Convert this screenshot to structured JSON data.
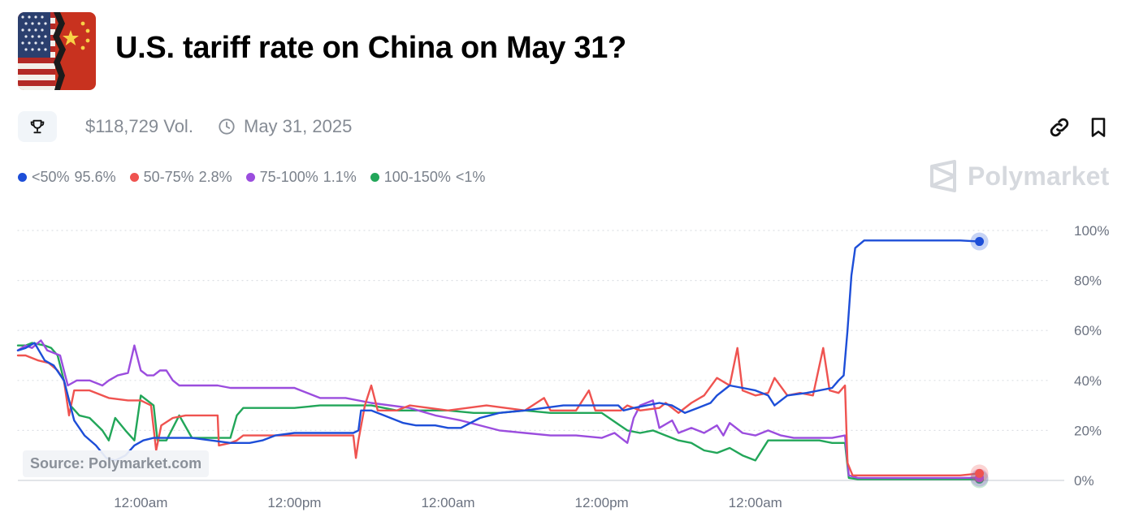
{
  "header": {
    "title": "U.S. tariff rate on China on May 31?",
    "icon": "us-china-flags-icon"
  },
  "meta": {
    "volume": "$118,729 Vol.",
    "end_date": "May 31, 2025",
    "icons": [
      "trophy-icon",
      "clock-icon",
      "link-icon",
      "bookmark-icon"
    ]
  },
  "brand": {
    "name": "Polymarket",
    "color": "#d6d9de"
  },
  "source": "Source: Polymarket.com",
  "chart_data": {
    "type": "line",
    "x_tick_labels": [
      "12:00am",
      "12:00pm",
      "12:00am",
      "12:00pm",
      "12:00am"
    ],
    "x_range": [
      -3.6,
      78
    ],
    "x_ticks": [
      6,
      18,
      30,
      42,
      54
    ],
    "ylim": [
      0,
      100
    ],
    "y_ticks": [
      0,
      20,
      40,
      60,
      80,
      100
    ],
    "y_tick_labels": [
      "0%",
      "20%",
      "40%",
      "60%",
      "80%",
      "100%"
    ],
    "grid": true,
    "legend_position": "top-left",
    "series": [
      {
        "name": "<50%",
        "label": "95.6%",
        "color": "#1d4ed8",
        "points": [
          [
            -3.6,
            52
          ],
          [
            -3,
            53
          ],
          [
            -2.3,
            55
          ],
          [
            -1.5,
            48
          ],
          [
            -0.8,
            46
          ],
          [
            0,
            40
          ],
          [
            0.8,
            24
          ],
          [
            1.6,
            18
          ],
          [
            2.5,
            14
          ],
          [
            3.3,
            9
          ],
          [
            4,
            8
          ],
          [
            4.8,
            10
          ],
          [
            5.5,
            14
          ],
          [
            6.2,
            16
          ],
          [
            7,
            17
          ],
          [
            8.5,
            17
          ],
          [
            10,
            17
          ],
          [
            11.5,
            16
          ],
          [
            13,
            15
          ],
          [
            14.5,
            15
          ],
          [
            15.5,
            16
          ],
          [
            16.5,
            18
          ],
          [
            18,
            19
          ],
          [
            20,
            19
          ],
          [
            22.6,
            19
          ],
          [
            23,
            20
          ],
          [
            23.2,
            28
          ],
          [
            24,
            28
          ],
          [
            25,
            26
          ],
          [
            26.5,
            23
          ],
          [
            27.5,
            22
          ],
          [
            29,
            22
          ],
          [
            30,
            21
          ],
          [
            31,
            21
          ],
          [
            32.5,
            25
          ],
          [
            34,
            27
          ],
          [
            36,
            28
          ],
          [
            37.5,
            29
          ],
          [
            39,
            30
          ],
          [
            41,
            30
          ],
          [
            43.3,
            30
          ],
          [
            43.7,
            28
          ],
          [
            44.5,
            29
          ],
          [
            45.5,
            30
          ],
          [
            46.5,
            31
          ],
          [
            47.5,
            30
          ],
          [
            48.5,
            27
          ],
          [
            49.5,
            29
          ],
          [
            50.5,
            31
          ],
          [
            51,
            34
          ],
          [
            52,
            38
          ],
          [
            53,
            37
          ],
          [
            54,
            36
          ],
          [
            55,
            34
          ],
          [
            55.5,
            30
          ],
          [
            56.5,
            34
          ],
          [
            58,
            35
          ],
          [
            60,
            37
          ],
          [
            60.5,
            40
          ],
          [
            60.9,
            42
          ],
          [
            61.2,
            60
          ],
          [
            61.5,
            82
          ],
          [
            61.8,
            93
          ],
          [
            62.5,
            96
          ],
          [
            64,
            96
          ],
          [
            66,
            96
          ],
          [
            68,
            96
          ],
          [
            70,
            96
          ],
          [
            71.5,
            95.6
          ]
        ]
      },
      {
        "name": "50-75%",
        "label": "2.8%",
        "color": "#ef5350",
        "points": [
          [
            -3.6,
            50
          ],
          [
            -3,
            50
          ],
          [
            -2,
            48
          ],
          [
            -1.2,
            47
          ],
          [
            -0.5,
            44
          ],
          [
            0,
            40
          ],
          [
            0.4,
            26
          ],
          [
            0.8,
            36
          ],
          [
            2,
            36
          ],
          [
            3.5,
            33
          ],
          [
            5,
            32
          ],
          [
            6,
            32
          ],
          [
            6.8,
            30
          ],
          [
            7.2,
            12
          ],
          [
            7.6,
            22
          ],
          [
            8.5,
            25
          ],
          [
            9.5,
            26
          ],
          [
            11,
            26
          ],
          [
            12,
            26
          ],
          [
            12.1,
            14
          ],
          [
            13,
            15
          ],
          [
            13.5,
            16
          ],
          [
            14,
            18
          ],
          [
            16,
            18
          ],
          [
            20,
            18
          ],
          [
            22.6,
            18
          ],
          [
            22.8,
            9
          ],
          [
            23,
            16
          ],
          [
            23.5,
            30
          ],
          [
            24,
            38
          ],
          [
            24.5,
            28
          ],
          [
            26,
            28
          ],
          [
            27,
            30
          ],
          [
            28.5,
            29
          ],
          [
            30,
            28
          ],
          [
            31.5,
            29
          ],
          [
            33,
            30
          ],
          [
            34.5,
            29
          ],
          [
            36,
            28
          ],
          [
            37.5,
            33
          ],
          [
            38,
            28
          ],
          [
            40,
            28
          ],
          [
            41,
            36
          ],
          [
            41.5,
            28
          ],
          [
            43.5,
            28
          ],
          [
            44,
            30
          ],
          [
            45,
            28
          ],
          [
            46.5,
            29
          ],
          [
            47,
            31
          ],
          [
            48,
            27
          ],
          [
            49,
            31
          ],
          [
            50,
            34
          ],
          [
            51,
            41
          ],
          [
            52,
            38
          ],
          [
            52.6,
            53
          ],
          [
            53,
            36
          ],
          [
            54,
            34
          ],
          [
            55,
            35
          ],
          [
            55.5,
            41
          ],
          [
            56.5,
            34
          ],
          [
            57.5,
            35
          ],
          [
            58.5,
            34
          ],
          [
            59.3,
            53
          ],
          [
            59.8,
            36
          ],
          [
            60.5,
            35
          ],
          [
            61,
            38
          ],
          [
            61.2,
            7
          ],
          [
            61.6,
            2
          ],
          [
            62,
            2
          ],
          [
            65,
            2
          ],
          [
            68,
            2
          ],
          [
            70,
            2
          ],
          [
            71.5,
            2.8
          ]
        ]
      },
      {
        "name": "75-100%",
        "label": "1.1%",
        "color": "#9b4dde",
        "points": [
          [
            -3.6,
            52
          ],
          [
            -3,
            54
          ],
          [
            -2.5,
            53
          ],
          [
            -1.8,
            56
          ],
          [
            -1.3,
            52
          ],
          [
            -0.8,
            51
          ],
          [
            -0.3,
            50
          ],
          [
            0,
            44
          ],
          [
            0.3,
            38
          ],
          [
            1,
            40
          ],
          [
            2,
            40
          ],
          [
            3,
            38
          ],
          [
            3.5,
            40
          ],
          [
            4.2,
            42
          ],
          [
            5,
            43
          ],
          [
            5.5,
            54
          ],
          [
            6,
            44
          ],
          [
            6.5,
            42
          ],
          [
            7,
            42
          ],
          [
            7.5,
            44
          ],
          [
            8,
            44
          ],
          [
            8.5,
            40
          ],
          [
            9,
            38
          ],
          [
            12,
            38
          ],
          [
            13,
            37
          ],
          [
            16,
            37
          ],
          [
            18,
            37
          ],
          [
            18.5,
            36
          ],
          [
            20,
            33
          ],
          [
            22,
            33
          ],
          [
            24,
            31
          ],
          [
            27,
            29
          ],
          [
            29,
            26
          ],
          [
            30,
            25
          ],
          [
            31,
            24
          ],
          [
            34,
            20
          ],
          [
            36,
            19
          ],
          [
            38,
            18
          ],
          [
            40,
            18
          ],
          [
            42,
            17
          ],
          [
            43,
            19
          ],
          [
            44,
            15
          ],
          [
            44.5,
            25
          ],
          [
            45,
            30
          ],
          [
            46,
            32
          ],
          [
            46.5,
            21
          ],
          [
            47.5,
            24
          ],
          [
            48,
            19
          ],
          [
            49,
            21
          ],
          [
            50,
            19
          ],
          [
            51,
            22
          ],
          [
            51.5,
            18
          ],
          [
            52,
            23
          ],
          [
            53,
            19
          ],
          [
            54,
            18
          ],
          [
            55,
            20
          ],
          [
            56,
            18
          ],
          [
            57,
            17
          ],
          [
            58,
            17
          ],
          [
            59,
            17
          ],
          [
            60,
            17
          ],
          [
            61,
            18
          ],
          [
            61.3,
            2
          ],
          [
            62,
            1
          ],
          [
            65,
            1
          ],
          [
            68,
            1
          ],
          [
            70,
            1
          ],
          [
            71.5,
            1.1
          ]
        ]
      },
      {
        "name": "100-150%",
        "label": "<1%",
        "color": "#22a659",
        "points": [
          [
            -3.6,
            54
          ],
          [
            -3,
            54
          ],
          [
            -2.5,
            55
          ],
          [
            -1.5,
            54
          ],
          [
            -1,
            53
          ],
          [
            -0.5,
            50
          ],
          [
            0,
            40
          ],
          [
            0.5,
            30
          ],
          [
            1.2,
            26
          ],
          [
            2,
            25
          ],
          [
            3,
            20
          ],
          [
            3.5,
            16
          ],
          [
            4,
            25
          ],
          [
            4.8,
            20
          ],
          [
            5.5,
            16
          ],
          [
            6,
            34
          ],
          [
            6.5,
            32
          ],
          [
            7,
            30
          ],
          [
            7.3,
            16
          ],
          [
            8,
            16
          ],
          [
            9,
            26
          ],
          [
            10,
            17
          ],
          [
            12,
            17
          ],
          [
            13,
            17
          ],
          [
            13.5,
            26
          ],
          [
            14,
            29
          ],
          [
            16,
            29
          ],
          [
            18,
            29
          ],
          [
            20,
            30
          ],
          [
            22,
            30
          ],
          [
            24,
            30
          ],
          [
            26,
            28
          ],
          [
            28,
            28
          ],
          [
            30,
            28
          ],
          [
            32,
            27
          ],
          [
            34,
            27
          ],
          [
            36,
            28
          ],
          [
            38,
            27
          ],
          [
            40,
            27
          ],
          [
            42,
            27
          ],
          [
            44,
            20
          ],
          [
            45,
            19
          ],
          [
            46,
            20
          ],
          [
            47,
            18
          ],
          [
            48,
            16
          ],
          [
            49,
            15
          ],
          [
            50,
            12
          ],
          [
            51,
            11
          ],
          [
            52,
            13
          ],
          [
            53,
            10
          ],
          [
            54,
            8
          ],
          [
            55,
            16
          ],
          [
            56,
            16
          ],
          [
            58,
            16
          ],
          [
            59,
            16
          ],
          [
            60,
            15
          ],
          [
            61,
            15
          ],
          [
            61.3,
            1
          ],
          [
            62,
            0.5
          ],
          [
            65,
            0.5
          ],
          [
            68,
            0.5
          ],
          [
            70,
            0.5
          ],
          [
            71.5,
            0.5
          ]
        ]
      }
    ]
  }
}
